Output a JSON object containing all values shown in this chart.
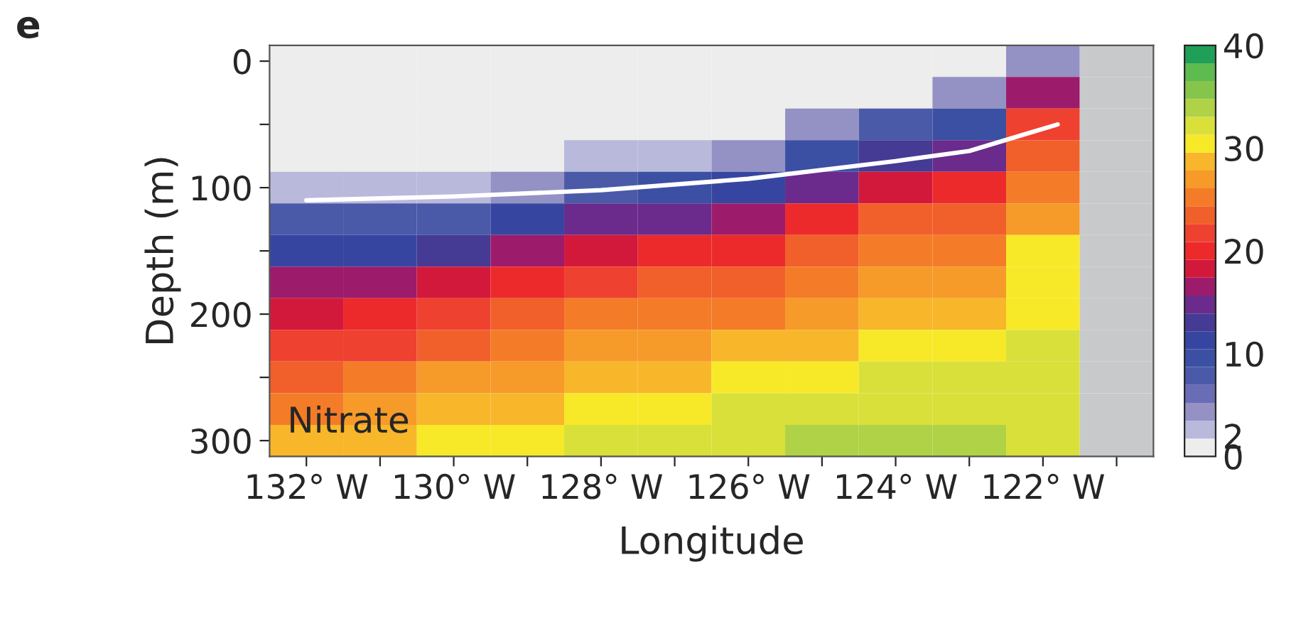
{
  "chart_data": {
    "type": "heatmap",
    "xlabel": "Longitude",
    "ylabel": "Depth (m)",
    "annotations": [
      "e",
      "Nitrate"
    ],
    "x": [
      132,
      131,
      130,
      129,
      128,
      127,
      126,
      125,
      124,
      123,
      122,
      121
    ],
    "y": [
      0,
      25,
      50,
      75,
      100,
      125,
      150,
      175,
      200,
      225,
      250,
      275,
      300
    ],
    "xlim": [
      132.5,
      120.5
    ],
    "xticks": [
      {
        "value": 132,
        "label": "132° W"
      },
      {
        "value": 131,
        "label": null
      },
      {
        "value": 130,
        "label": "130° W"
      },
      {
        "value": 129,
        "label": null
      },
      {
        "value": 128,
        "label": "128° W"
      },
      {
        "value": 127,
        "label": null
      },
      {
        "value": 126,
        "label": "126° W"
      },
      {
        "value": 125,
        "label": null
      },
      {
        "value": 124,
        "label": "124° W"
      },
      {
        "value": 123,
        "label": null
      },
      {
        "value": 122,
        "label": "122° W"
      },
      {
        "value": 121,
        "label": null
      }
    ],
    "ylim": [
      312.5,
      -12.5
    ],
    "yticks": [
      0,
      {
        "value": 50,
        "label": null
      },
      100,
      {
        "value": 150,
        "label": null
      },
      200,
      {
        "value": 250,
        "label": null
      },
      300
    ],
    "cells": [
      [
        0,
        0,
        0,
        0,
        0,
        0,
        0,
        0,
        0,
        1,
        5,
        null
      ],
      [
        0,
        0,
        0,
        0,
        0,
        0,
        0,
        0,
        1.5,
        4.5,
        16,
        null
      ],
      [
        0,
        0,
        0,
        0,
        0,
        0,
        1,
        4,
        7,
        10,
        22,
        null
      ],
      [
        0,
        0,
        0,
        1,
        2,
        3,
        4.5,
        9,
        13.5,
        15.5,
        24,
        null
      ],
      [
        2.5,
        2.5,
        3,
        5,
        7.5,
        9,
        10.5,
        15,
        19,
        20,
        26,
        null
      ],
      [
        7,
        7,
        7.5,
        11,
        14,
        15,
        16,
        19.5,
        23,
        23.5,
        27,
        null
      ],
      [
        11,
        12,
        12.5,
        16,
        19,
        20,
        20.5,
        23,
        26,
        26,
        30,
        null
      ],
      [
        16,
        17,
        18,
        20,
        22.5,
        23,
        24,
        26,
        27.5,
        27.5,
        31,
        null
      ],
      [
        19,
        20,
        21.5,
        23,
        24.5,
        25,
        26,
        27.5,
        29,
        29,
        31,
        null
      ],
      [
        21.5,
        22.5,
        23.5,
        25,
        27,
        27.5,
        28,
        29.5,
        31,
        30.5,
        31.5,
        null
      ],
      [
        24,
        25,
        26.5,
        27.5,
        29,
        29.5,
        30,
        31,
        32,
        31.5,
        32,
        null
      ],
      [
        26,
        27,
        28,
        29.5,
        31,
        31,
        31.5,
        32.5,
        33,
        33,
        32,
        null
      ],
      [
        28,
        29,
        30,
        31,
        32,
        32.5,
        33,
        33.5,
        34.5,
        34,
        32,
        null
      ]
    ],
    "clim": [
      0,
      40
    ],
    "cticks": [
      0,
      2,
      10,
      20,
      30,
      40
    ],
    "colors": [
      "#ecedec",
      "#b9b9dc",
      "#9491c4",
      "#6a6cb5",
      "#4a5aa8",
      "#3b50a3",
      "#3646a0",
      "#453a94",
      "#6a2b8c",
      "#9c1c6b",
      "#d3193b",
      "#ec2a2c",
      "#ee4130",
      "#f15f2b",
      "#f47c28",
      "#f69a29",
      "#f8b62b",
      "#f7e928",
      "#d9e03a",
      "#afd246",
      "#86c54c",
      "#5dbb50",
      "#1f9f57"
    ],
    "series": [
      {
        "type": "line",
        "color": "#ffffff",
        "x": [
          132,
          130,
          128,
          126,
          124,
          123,
          122.2,
          121.8
        ],
        "values": [
          110,
          107,
          102,
          93,
          79,
          71,
          57,
          50
        ]
      }
    ]
  }
}
